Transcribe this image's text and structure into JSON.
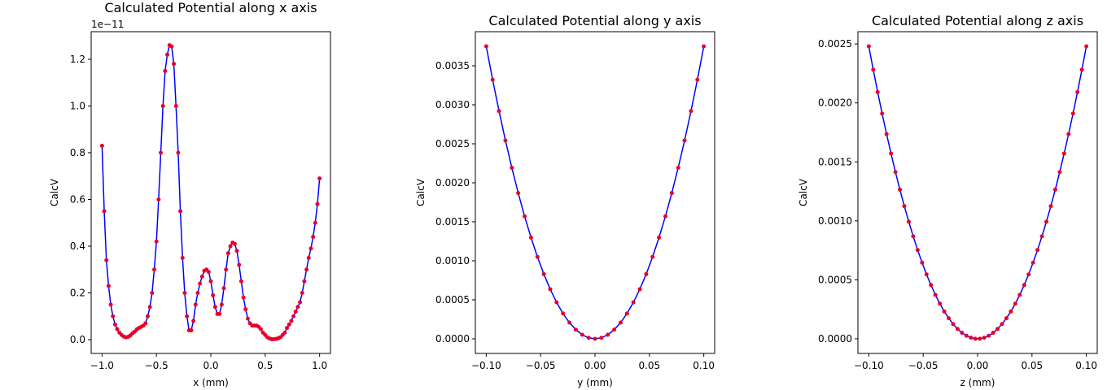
{
  "chart_data": [
    {
      "type": "line",
      "title": "Calculated Potential along x axis",
      "x_label": "x (mm)",
      "y_label": "CalcV",
      "y_offset_label": "1e−11",
      "xlim": [
        -1.1,
        1.1
      ],
      "ylim": [
        -0.059,
        1.318
      ],
      "xticks": [
        {
          "value": -1,
          "label": "−1.0"
        },
        {
          "value": -0.5,
          "label": "−0.5"
        },
        {
          "value": 0,
          "label": "0.0"
        },
        0.5,
        {
          "value": 1,
          "label": "1.0"
        }
      ],
      "yticks": [
        {
          "value": 0,
          "label": "0.0"
        },
        0.2,
        0.4,
        0.6,
        0.8,
        {
          "value": 1,
          "label": "1.0"
        },
        1.2
      ],
      "x": [
        -1.0,
        -0.98,
        -0.96,
        -0.94,
        -0.92,
        -0.9,
        -0.88,
        -0.86,
        -0.84,
        -0.82,
        -0.8,
        -0.78,
        -0.76,
        -0.74,
        -0.72,
        -0.7,
        -0.68,
        -0.66,
        -0.64,
        -0.62,
        -0.6,
        -0.58,
        -0.56,
        -0.54,
        -0.52,
        -0.5,
        -0.48,
        -0.46,
        -0.44,
        -0.42,
        -0.4,
        -0.38,
        -0.36,
        -0.34,
        -0.32,
        -0.3,
        -0.28,
        -0.26,
        -0.24,
        -0.22,
        -0.2,
        -0.18,
        -0.16,
        -0.14,
        -0.12,
        -0.1,
        -0.08,
        -0.06,
        -0.04,
        -0.02,
        0.0,
        0.02,
        0.04,
        0.06,
        0.08,
        0.1,
        0.12,
        0.14,
        0.16,
        0.18,
        0.2,
        0.22,
        0.24,
        0.26,
        0.28,
        0.3,
        0.32,
        0.34,
        0.36,
        0.38,
        0.4,
        0.42,
        0.44,
        0.46,
        0.48,
        0.5,
        0.52,
        0.54,
        0.56,
        0.58,
        0.6,
        0.62,
        0.64,
        0.66,
        0.68,
        0.7,
        0.72,
        0.74,
        0.76,
        0.78,
        0.8,
        0.82,
        0.84,
        0.86,
        0.88,
        0.9,
        0.92,
        0.94,
        0.96,
        0.98,
        1.0
      ],
      "series": [
        {
          "color": "#0000ff",
          "marker_color": "#e8002a",
          "values": [
            0.83,
            0.55,
            0.34,
            0.23,
            0.15,
            0.1,
            0.065,
            0.045,
            0.03,
            0.02,
            0.013,
            0.01,
            0.012,
            0.018,
            0.027,
            0.034,
            0.044,
            0.05,
            0.055,
            0.06,
            0.07,
            0.1,
            0.14,
            0.2,
            0.3,
            0.42,
            0.6,
            0.8,
            1.0,
            1.15,
            1.22,
            1.26,
            1.255,
            1.18,
            1.0,
            0.8,
            0.55,
            0.35,
            0.2,
            0.1,
            0.04,
            0.04,
            0.08,
            0.15,
            0.2,
            0.24,
            0.27,
            0.295,
            0.3,
            0.29,
            0.25,
            0.19,
            0.14,
            0.11,
            0.11,
            0.15,
            0.22,
            0.3,
            0.37,
            0.4,
            0.415,
            0.41,
            0.38,
            0.32,
            0.25,
            0.18,
            0.13,
            0.09,
            0.07,
            0.06,
            0.06,
            0.06,
            0.055,
            0.045,
            0.03,
            0.02,
            0.01,
            0.005,
            0.002,
            0.002,
            0.003,
            0.006,
            0.01,
            0.02,
            0.03,
            0.05,
            0.065,
            0.08,
            0.1,
            0.12,
            0.14,
            0.16,
            0.2,
            0.25,
            0.3,
            0.35,
            0.39,
            0.44,
            0.5,
            0.58,
            0.69
          ]
        }
      ]
    },
    {
      "type": "line",
      "title": "Calculated Potential along y axis",
      "x_label": "y (mm)",
      "y_label": "CalcV",
      "xlim": [
        -0.11,
        0.11
      ],
      "ylim": [
        -0.0001875,
        0.0039375
      ],
      "xticks": [
        {
          "value": -0.1,
          "label": "−0.10"
        },
        {
          "value": -0.05,
          "label": "−0.05"
        },
        {
          "value": 0,
          "label": "0.00"
        },
        0.05,
        {
          "value": 0.1,
          "label": "0.10"
        }
      ],
      "yticks": [
        {
          "value": 0,
          "label": "0.0000"
        },
        0.0005,
        {
          "value": 0.001,
          "label": "0.0010"
        },
        0.0015,
        {
          "value": 0.002,
          "label": "0.0020"
        },
        0.0025,
        {
          "value": 0.003,
          "label": "0.0030"
        },
        0.0035
      ],
      "x": [
        -0.1,
        -0.09412,
        -0.08824,
        -0.08235,
        -0.07647,
        -0.07059,
        -0.06471,
        -0.05882,
        -0.05294,
        -0.04706,
        -0.04118,
        -0.03529,
        -0.02941,
        -0.02353,
        -0.01765,
        -0.01176,
        -0.00588,
        0,
        0.00588,
        0.01176,
        0.01765,
        0.02353,
        0.02941,
        0.03529,
        0.04118,
        0.04706,
        0.05294,
        0.05882,
        0.06471,
        0.07059,
        0.07647,
        0.08235,
        0.08824,
        0.09412,
        0.1
      ],
      "series": [
        {
          "color": "#0000ff",
          "marker_color": "#e8002a",
          "values": [
            0.00375,
            0.003322,
            0.00292,
            0.002543,
            0.002193,
            0.001869,
            0.00157,
            0.001298,
            0.001051,
            0.00083,
            0.000636,
            0.000467,
            0.000324,
            0.000208,
            0.000117,
            5.19e-05,
            1.3e-05,
            0,
            1.3e-05,
            5.19e-05,
            0.000117,
            0.000208,
            0.000324,
            0.000467,
            0.000636,
            0.00083,
            0.001051,
            0.001298,
            0.00157,
            0.001869,
            0.002193,
            0.002543,
            0.00292,
            0.003322,
            0.00375
          ]
        }
      ]
    },
    {
      "type": "line",
      "title": "Calculated Potential along z axis",
      "x_label": "z (mm)",
      "y_label": "CalcV",
      "xlim": [
        -0.11,
        0.11
      ],
      "ylim": [
        -0.000124,
        0.002604
      ],
      "xticks": [
        {
          "value": -0.1,
          "label": "−0.10"
        },
        {
          "value": -0.05,
          "label": "−0.05"
        },
        {
          "value": 0,
          "label": "0.00"
        },
        0.05,
        {
          "value": 0.1,
          "label": "0.10"
        }
      ],
      "yticks": [
        {
          "value": 0,
          "label": "0.0000"
        },
        0.0005,
        {
          "value": 0.001,
          "label": "0.0010"
        },
        0.0015,
        {
          "value": 0.002,
          "label": "0.0020"
        },
        0.0025
      ],
      "x": [
        -0.1,
        -0.09592,
        -0.09184,
        -0.08776,
        -0.08367,
        -0.07959,
        -0.07551,
        -0.07143,
        -0.06735,
        -0.06327,
        -0.05918,
        -0.0551,
        -0.05102,
        -0.04694,
        -0.04286,
        -0.03878,
        -0.03469,
        -0.03061,
        -0.02653,
        -0.02245,
        -0.01837,
        -0.01429,
        -0.0102,
        -0.00612,
        -0.00204,
        0.00204,
        0.00612,
        0.0102,
        0.01429,
        0.01837,
        0.02245,
        0.02653,
        0.03061,
        0.03469,
        0.03878,
        0.04286,
        0.04694,
        0.05102,
        0.0551,
        0.05918,
        0.06327,
        0.06735,
        0.07143,
        0.07551,
        0.07959,
        0.08367,
        0.08776,
        0.09184,
        0.09592,
        0.1
      ],
      "series": [
        {
          "color": "#0000ff",
          "marker_color": "#e8002a",
          "values": [
            0.00248,
            0.002282,
            0.002092,
            0.00191,
            0.001736,
            0.001571,
            0.001414,
            0.001265,
            0.001125,
            0.000993,
            0.000869,
            0.000753,
            0.000646,
            0.000546,
            0.000456,
            0.000373,
            0.000298,
            0.000232,
            0.000175,
            0.000125,
            8.36e-05,
            5.06e-05,
            2.58e-05,
            9.3e-06,
            1e-06,
            1e-06,
            9.3e-06,
            2.58e-05,
            5.06e-05,
            8.36e-05,
            0.000125,
            0.000175,
            0.000232,
            0.000298,
            0.000373,
            0.000456,
            0.000546,
            0.000646,
            0.000753,
            0.000869,
            0.000993,
            0.001125,
            0.001265,
            0.001414,
            0.001571,
            0.001736,
            0.00191,
            0.002092,
            0.002282,
            0.00248
          ]
        }
      ]
    }
  ]
}
